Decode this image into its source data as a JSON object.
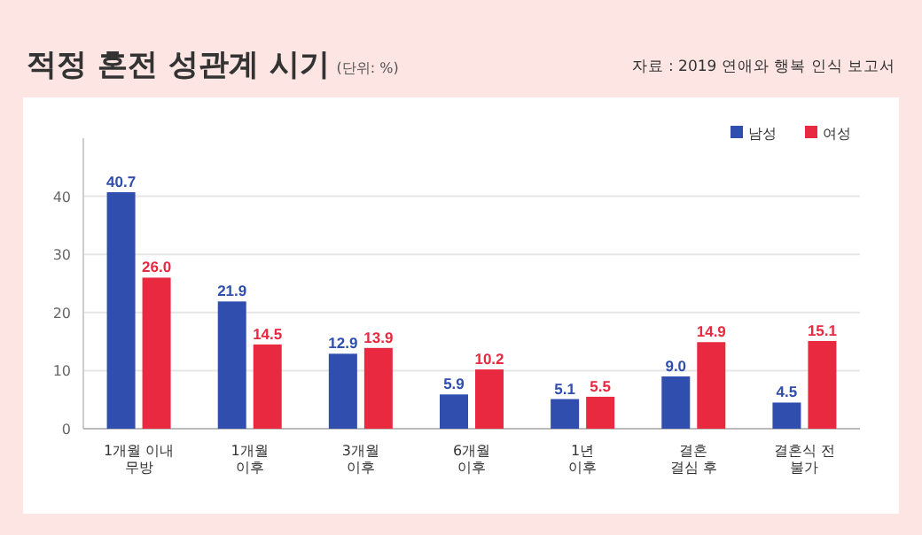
{
  "chart_data": {
    "type": "bar",
    "title": "적정 혼전 성관계 시기",
    "subtitle": "(단위: %)",
    "annotations": [
      "자료 : 2019 연애와 행복 인식 보고서"
    ],
    "categories": [
      "1개월 이내\n무방",
      "1개월\n이후",
      "3개월\n이후",
      "6개월\n이후",
      "1년\n이후",
      "결혼\n결심 후",
      "결혼식 전\n불가"
    ],
    "series": [
      {
        "name": "남성",
        "color": "#2f4eae",
        "values": [
          40.7,
          21.9,
          12.9,
          5.9,
          5.1,
          9.0,
          4.5
        ],
        "value_labels": [
          "40.7",
          "21.9",
          "12.9",
          "5.9",
          "5.1",
          "9.0",
          "4.5"
        ]
      },
      {
        "name": "여성",
        "color": "#e8293f",
        "values": [
          26.0,
          14.5,
          13.9,
          10.2,
          5.5,
          14.9,
          15.1
        ],
        "value_labels": [
          "26.0",
          "14.5",
          "13.9",
          "10.2",
          "5.5",
          "14.9",
          "15.1"
        ]
      }
    ],
    "ylim": [
      0,
      50
    ],
    "yticks": [
      0,
      10,
      20,
      30,
      40
    ],
    "grid": "y",
    "legend": "top right"
  }
}
